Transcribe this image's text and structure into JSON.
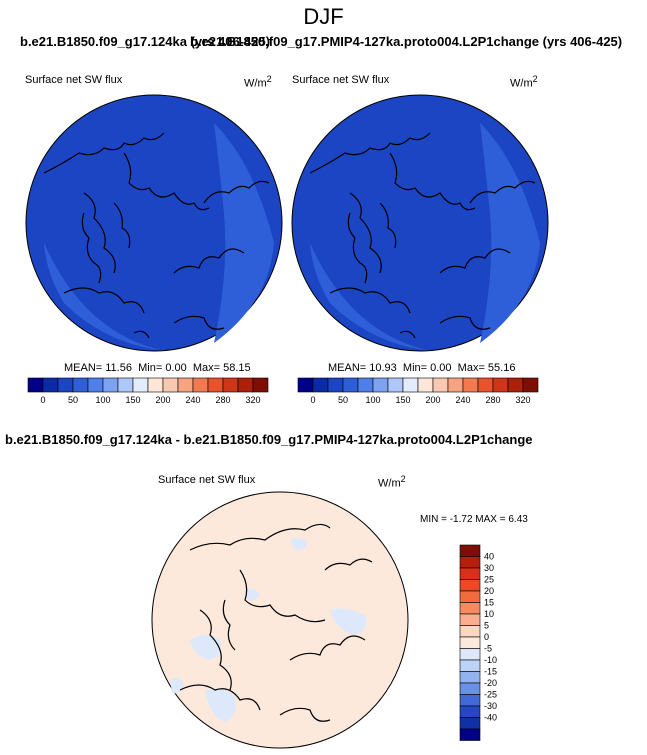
{
  "season": "DJF",
  "top_title_left": "b.e21.B1850.f09_g17.124ka (yrs 406-425)",
  "top_title_right": "b.e21.B1850.f09_g17.PMIP4-127ka.proto004.L2P1change (yrs 406-425)",
  "diff_title": "b.e21.B1850.f09_g17.124ka - b.e21.B1850.f09_g17.PMIP4-127ka.proto004.L2P1change",
  "variable": "Surface net SW flux",
  "units_base": "W/m",
  "units_exp": "2",
  "panel_left": {
    "mean": "MEAN=  11.56",
    "min": "Min=   0.00",
    "max": "Max=  58.15"
  },
  "panel_right": {
    "mean": "MEAN=  10.93",
    "min": "Min=   0.00",
    "max": "Max=  55.16"
  },
  "diff_stats": "MIN =  -1.72 MAX =   6.43",
  "colorbar_top": {
    "labels": [
      "0",
      "50",
      "100",
      "150",
      "200",
      "240",
      "280",
      "320"
    ],
    "colors": [
      "#00008a",
      "#0b2aa6",
      "#1c45c4",
      "#2e5fd8",
      "#4f7fe8",
      "#7ca2f1",
      "#aec7f8",
      "#e2ecfb",
      "#fde7d8",
      "#f9c8b0",
      "#f6a382",
      "#f27a52",
      "#e8532e",
      "#cf3519",
      "#ae200c",
      "#7e0f05"
    ]
  },
  "colorbar_diff": {
    "labels": [
      "40",
      "30",
      "25",
      "20",
      "15",
      "10",
      "5",
      "0",
      "-5",
      "-10",
      "-15",
      "-20",
      "-25",
      "-30",
      "-40"
    ],
    "colors": [
      "#7e0f05",
      "#b51f0b",
      "#d8301a",
      "#ec4a26",
      "#f26a3e",
      "#f58a61",
      "#f8ae8f",
      "#fbd7c1",
      "#fde9dc",
      "#dde9fb",
      "#bcd2f6",
      "#93b3ef",
      "#6b90e5",
      "#4369d6",
      "#2348c2",
      "#1030a8",
      "#00008a"
    ]
  },
  "map_fill": {
    "left_main": "#1c45c4",
    "left_rim": "#2e5fd8",
    "right_main": "#1c45c4",
    "right_rim": "#2e5fd8",
    "diff_main": "#fde9dc",
    "diff_neg": "#dde9fb"
  }
}
